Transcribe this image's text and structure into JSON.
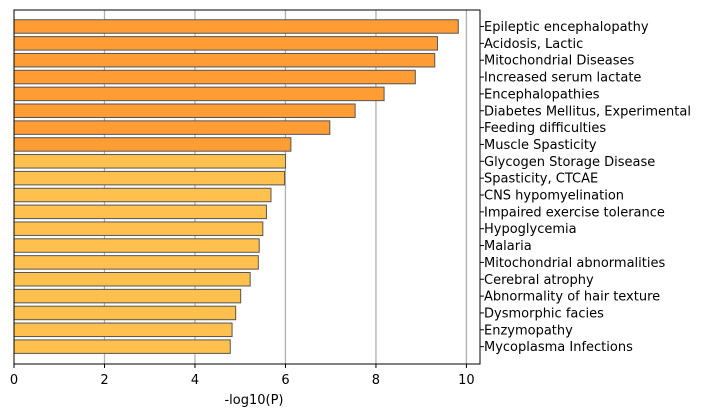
{
  "chart_data": {
    "type": "bar",
    "orientation": "horizontal",
    "title": "",
    "xlabel": "-log10(P)",
    "ylabel": "",
    "xlim": [
      0,
      10.3
    ],
    "xticks": [
      0,
      2,
      4,
      6,
      8,
      10
    ],
    "grid": "vertical, on",
    "category_label_side": "right",
    "colors": {
      "dark": "#FF9C33",
      "light": "#FFC04D",
      "edge": "#555555",
      "grid": "#b0b0b0"
    },
    "categories": [
      "Epileptic encephalopathy",
      "Acidosis, Lactic",
      "Mitochondrial Diseases",
      "Increased serum lactate",
      "Encephalopathies",
      "Diabetes Mellitus, Experimental",
      "Feeding difficulties",
      "Muscle Spasticity",
      "Glycogen Storage Disease",
      "Spasticity, CTCAE",
      "CNS hypomyelination",
      "Impaired exercise tolerance",
      "Hypoglycemia",
      "Malaria",
      "Mitochondrial abnormalities",
      "Cerebral atrophy",
      "Abnormality of hair texture",
      "Dysmorphic facies",
      "Enzymopathy",
      "Mycoplasma Infections"
    ],
    "values": [
      9.82,
      9.36,
      9.3,
      8.87,
      8.18,
      7.54,
      6.98,
      6.12,
      6.0,
      5.98,
      5.68,
      5.58,
      5.5,
      5.42,
      5.4,
      5.22,
      5.01,
      4.9,
      4.82,
      4.78
    ],
    "color_groups": [
      "dark",
      "dark",
      "dark",
      "dark",
      "dark",
      "dark",
      "dark",
      "dark",
      "light",
      "light",
      "light",
      "light",
      "light",
      "light",
      "light",
      "light",
      "light",
      "light",
      "light",
      "light"
    ]
  }
}
